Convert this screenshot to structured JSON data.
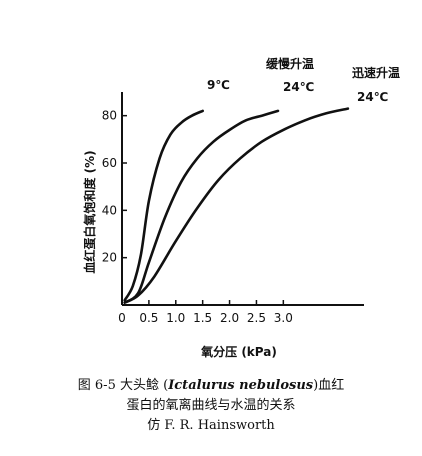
{
  "chart_data": {
    "type": "line",
    "title": "",
    "xlabel": "氧分压 (kPa)",
    "ylabel": "血红蛋白氧饱和度 (%)",
    "xlim": [
      0,
      4.5
    ],
    "ylim": [
      0,
      90
    ],
    "x_ticks": [
      {
        "value": 0,
        "label": "0"
      },
      {
        "value": 0.5,
        "label": "0.5"
      },
      {
        "value": 1.0,
        "label": "1.0"
      },
      {
        "value": 1.5,
        "label": "1.5"
      },
      {
        "value": 2.0,
        "label": "2.0"
      },
      {
        "value": 2.5,
        "label": "2.5"
      },
      {
        "value": 3.0,
        "label": "3.0"
      }
    ],
    "y_ticks": [
      {
        "value": 20,
        "label": "20"
      },
      {
        "value": 40,
        "label": "40"
      },
      {
        "value": 60,
        "label": "60"
      },
      {
        "value": 80,
        "label": "80"
      }
    ],
    "grid": false,
    "legend": "none",
    "series": [
      {
        "name": "9℃",
        "x": [
          0.05,
          0.2,
          0.35,
          0.5,
          0.7,
          0.9,
          1.1,
          1.3,
          1.5
        ],
        "y": [
          2,
          8,
          21,
          44,
          62,
          72,
          77,
          80,
          82
        ]
      },
      {
        "name": "24℃",
        "x": [
          0.05,
          0.3,
          0.5,
          0.8,
          1.1,
          1.4,
          1.7,
          2.0,
          2.3,
          2.6,
          2.9
        ],
        "y": [
          1,
          5,
          18,
          37,
          52,
          62,
          69,
          74,
          78,
          80,
          82
        ]
      },
      {
        "name": "24℃",
        "x": [
          0.05,
          0.3,
          0.6,
          1.0,
          1.4,
          1.8,
          2.2,
          2.6,
          3.0,
          3.4,
          3.8,
          4.2
        ],
        "y": [
          1,
          4,
          12,
          27,
          41,
          53,
          62,
          69,
          74,
          78,
          81,
          83
        ]
      }
    ],
    "annotations": [
      {
        "text": "缓慢升温"
      },
      {
        "text": "迅速升温"
      }
    ]
  },
  "caption": {
    "line1_prefix": "图 6-5  大头鲶 (",
    "line1_species": "Ictalurus nebulosus",
    "line1_suffix": ")血红",
    "line2": "蛋白的氧离曲线与水温的关系",
    "line3": "仿 F. R. Hainsworth"
  }
}
